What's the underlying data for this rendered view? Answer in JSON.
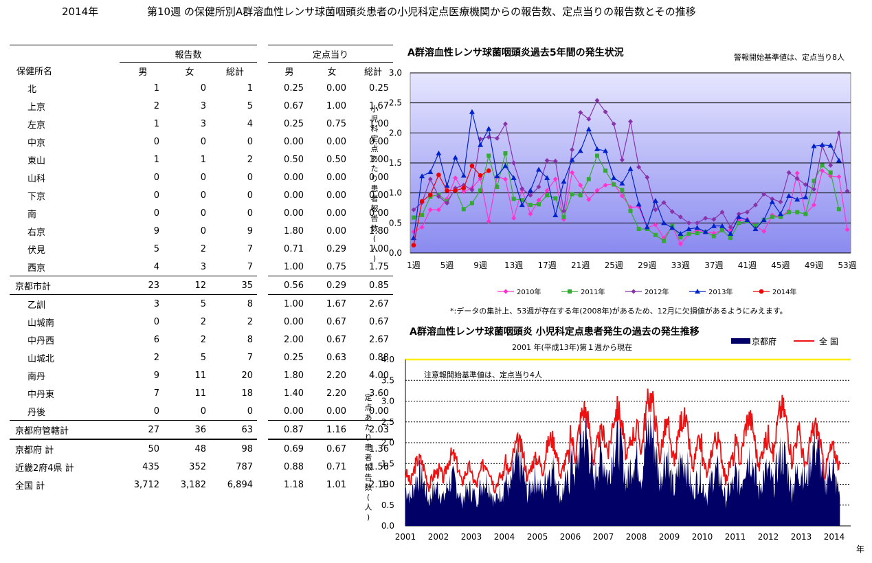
{
  "header": {
    "year": "2014年",
    "title": "第10週 の保健所別A群溶血性レンサ球菌咽頭炎患者の小児科定点医療機関からの報告数、定点当りの報告数とその推移"
  },
  "table": {
    "group_reports": "報告数",
    "group_per_site": "定点当り",
    "col_name": "保健所名",
    "cols": [
      "男",
      "女",
      "総計",
      "男",
      "女",
      "総計"
    ],
    "rows": [
      {
        "name": "北",
        "indent": true,
        "v": [
          "1",
          "0",
          "1",
          "0.25",
          "0.00",
          "0.25"
        ],
        "border": ""
      },
      {
        "name": "上京",
        "indent": true,
        "v": [
          "2",
          "3",
          "5",
          "0.67",
          "1.00",
          "1.67"
        ],
        "border": ""
      },
      {
        "name": "左京",
        "indent": true,
        "v": [
          "1",
          "3",
          "4",
          "0.25",
          "0.75",
          "1.00"
        ],
        "border": ""
      },
      {
        "name": "中京",
        "indent": true,
        "v": [
          "0",
          "0",
          "0",
          "0.00",
          "0.00",
          "0.00"
        ],
        "border": ""
      },
      {
        "name": "東山",
        "indent": true,
        "v": [
          "1",
          "1",
          "2",
          "0.50",
          "0.50",
          "1.00"
        ],
        "border": ""
      },
      {
        "name": "山科",
        "indent": true,
        "v": [
          "0",
          "0",
          "0",
          "0.00",
          "0.00",
          "0.00"
        ],
        "border": ""
      },
      {
        "name": "下京",
        "indent": true,
        "v": [
          "0",
          "0",
          "0",
          "0.00",
          "0.00",
          "0.00"
        ],
        "border": ""
      },
      {
        "name": "南",
        "indent": true,
        "v": [
          "0",
          "0",
          "0",
          "0.00",
          "0.00",
          "0.00"
        ],
        "border": ""
      },
      {
        "name": "右京",
        "indent": true,
        "v": [
          "9",
          "0",
          "9",
          "1.80",
          "0.00",
          "1.80"
        ],
        "border": ""
      },
      {
        "name": "伏見",
        "indent": true,
        "v": [
          "5",
          "2",
          "7",
          "0.71",
          "0.29",
          "1.00"
        ],
        "border": ""
      },
      {
        "name": "西京",
        "indent": true,
        "v": [
          "4",
          "3",
          "7",
          "1.00",
          "0.75",
          "1.75"
        ],
        "border": ""
      },
      {
        "name": "京都市計",
        "indent": false,
        "v": [
          "23",
          "12",
          "35",
          "0.56",
          "0.29",
          "0.85"
        ],
        "border": "bt"
      },
      {
        "name": "乙訓",
        "indent": true,
        "v": [
          "3",
          "5",
          "8",
          "1.00",
          "1.67",
          "2.67"
        ],
        "border": "bt"
      },
      {
        "name": "山城南",
        "indent": true,
        "v": [
          "0",
          "2",
          "2",
          "0.00",
          "0.67",
          "0.67"
        ],
        "border": ""
      },
      {
        "name": "中丹西",
        "indent": true,
        "v": [
          "6",
          "2",
          "8",
          "2.00",
          "0.67",
          "2.67"
        ],
        "border": ""
      },
      {
        "name": "山城北",
        "indent": true,
        "v": [
          "2",
          "5",
          "7",
          "0.25",
          "0.63",
          "0.88"
        ],
        "border": ""
      },
      {
        "name": "南丹",
        "indent": true,
        "v": [
          "9",
          "11",
          "20",
          "1.80",
          "2.20",
          "4.00"
        ],
        "border": ""
      },
      {
        "name": "中丹東",
        "indent": true,
        "v": [
          "7",
          "11",
          "18",
          "1.40",
          "2.20",
          "3.60"
        ],
        "border": ""
      },
      {
        "name": "丹後",
        "indent": true,
        "v": [
          "0",
          "0",
          "0",
          "0.00",
          "0.00",
          "0.00"
        ],
        "border": ""
      },
      {
        "name": "京都府管轄計",
        "indent": false,
        "v": [
          "27",
          "36",
          "63",
          "0.87",
          "1.16",
          "2.03"
        ],
        "border": "bt"
      },
      {
        "name": "京都府 計",
        "indent": false,
        "v": [
          "50",
          "48",
          "98",
          "0.69",
          "0.67",
          "1.36"
        ],
        "border": "bt2"
      },
      {
        "name": "近畿2府4県 計",
        "indent": false,
        "v": [
          "435",
          "352",
          "787",
          "0.88",
          "0.71",
          "1.58"
        ],
        "border": ""
      },
      {
        "name": "全国 計",
        "indent": false,
        "v": [
          "3,712",
          "3,182",
          "6,894",
          "1.18",
          "1.01",
          "2.19"
        ],
        "border": ""
      }
    ]
  },
  "chart1_note": "警報開始基準値は、定点当り8人",
  "chart1_footnote": "*:データの集計上、53週が存在する年(2008年)があるため、12月に欠損値があるようにみえます。",
  "chart2_note": "注意報開始基準値は、定点当り4人",
  "chart2_subtitle": "2001 年(平成13年)第１週から現在",
  "chart2_xunit": "年",
  "chart_data": [
    {
      "type": "line",
      "title": "A群溶血性レンサ球菌咽頭炎過去5年間の発生状況",
      "ylabel": "小児科定点あたり患者報告数(人)",
      "ylim": [
        0,
        30
      ],
      "yticks": [
        "0.0",
        "0.5",
        "1.0",
        "1.5",
        "2.0",
        "2.5",
        "3.0"
      ],
      "xticks": [
        "1週",
        "5週",
        "9週",
        "13週",
        "17週",
        "21週",
        "25週",
        "29週",
        "33週",
        "37週",
        "41週",
        "45週",
        "49週",
        "53週"
      ],
      "series": [
        {
          "name": "2010年",
          "color": "#ff33cc",
          "marker": "diamond",
          "values": [
            3.5,
            4.3,
            7.2,
            7.2,
            9.0,
            12.5,
            10.2,
            10.8,
            12.4,
            5.3,
            12.7,
            12.3,
            5.8,
            10.5,
            6.5,
            8.8,
            10.4,
            12.3,
            5.6,
            13.4,
            11.3,
            8.9,
            10.4,
            11.3,
            11.5,
            9.5,
            7.6,
            7.7,
            4.2,
            4.7,
            2.5,
            4.4,
            1.5,
            3.1,
            3.8,
            3.5,
            3.3,
            3.8,
            3.8,
            5.4,
            5.6,
            4.5,
            3.6,
            6.3,
            6.0,
            7.0,
            13.3,
            6.5,
            8.0,
            13.7,
            12.8,
            12.7,
            3.9
          ]
        },
        {
          "name": "2011年",
          "color": "#33aa33",
          "marker": "square",
          "values": [
            5.9,
            6.3,
            9.4,
            9.7,
            8.6,
            10.6,
            7.3,
            8.3,
            10.4,
            16.2,
            11.0,
            16.6,
            9.0,
            8.8,
            8.0,
            8.1,
            9.6,
            9.1,
            6.0,
            9.8,
            9.6,
            12.3,
            16.2,
            13.7,
            11.4,
            10.5,
            7.0,
            4.0,
            4.0,
            3.0,
            2.0,
            4.5,
            2.6,
            3.2,
            3.3,
            3.5,
            2.8,
            3.8,
            2.5,
            5.0,
            5.3,
            4.5,
            5.5,
            6.0,
            6.0,
            6.8,
            6.8,
            6.5,
            12.0,
            14.6,
            13.4,
            7.3
          ]
        },
        {
          "name": "2012年",
          "color": "#8833aa",
          "marker": "diamond",
          "values": [
            7.2,
            8.4,
            12.3,
            9.4,
            8.3,
            10.8,
            11.3,
            10.5,
            19.0,
            19.3,
            19.1,
            21.5,
            15.0,
            10.7,
            9.6,
            11.0,
            15.4,
            15.3,
            7.0,
            17.2,
            23.4,
            22.3,
            25.4,
            23.5,
            21.5,
            15.5,
            21.9,
            14.3,
            12.6,
            7.2,
            8.4,
            6.9,
            6.0,
            5.0,
            5.0,
            5.8,
            5.6,
            6.8,
            4.3,
            6.5,
            6.8,
            8.0,
            9.8,
            9.0,
            8.5,
            13.4,
            12.4,
            11.4,
            10.6,
            17.8,
            14.6,
            20.0,
            10.3
          ]
        },
        {
          "name": "2013年",
          "color": "#0022cc",
          "marker": "triangle",
          "values": [
            2.5,
            12.8,
            13.5,
            16.6,
            11.2,
            15.9,
            12.9,
            23.5,
            18.0,
            20.7,
            12.8,
            14.5,
            12.5,
            8.0,
            10.4,
            13.9,
            12.5,
            6.3,
            11.9,
            15.5,
            17.0,
            20.6,
            17.3,
            17.0,
            12.5,
            11.6,
            14.0,
            8.1,
            4.3,
            8.7,
            5.0,
            4.2,
            3.2,
            4.0,
            4.2,
            3.5,
            4.5,
            4.5,
            3.2,
            6.0,
            5.5,
            4.0,
            5.5,
            8.5,
            6.5,
            9.5,
            8.9,
            9.3,
            17.8,
            18.0,
            17.9,
            15.4
          ]
        },
        {
          "name": "2014年",
          "color": "#ee0000",
          "marker": "circle",
          "values": [
            1.3,
            8.6,
            9.7,
            13.0,
            10.4,
            10.4,
            10.8,
            14.5,
            12.9,
            13.7
          ]
        }
      ]
    },
    {
      "type": "area",
      "title": "A群溶血性レンサ球菌咽頭炎 小児科定点患者発生の過去の発生推移",
      "ylabel": "定点あたり患者報告数(人)",
      "ylim": [
        0,
        4.0
      ],
      "yticks": [
        "0.0",
        "0.5",
        "1.0",
        "1.5",
        "2.0",
        "2.5",
        "3.0",
        "3.5",
        "4.0"
      ],
      "xticks": [
        "2001",
        "2002",
        "2003",
        "2004",
        "2005",
        "2006",
        "2007",
        "2008",
        "2009",
        "2010",
        "2011",
        "2012",
        "2013",
        "2014"
      ],
      "series": [
        {
          "name": "京都府",
          "color": "#000066",
          "peaks": [
            1.2,
            1.1,
            1.1,
            1.5,
            1.4,
            2.2,
            2.1,
            2.3,
            1.6,
            1.3,
            1.7,
            1.7,
            1.9,
            1.4
          ],
          "troughs": [
            0.2,
            0.25,
            0.2,
            0.25,
            0.2,
            0.3,
            0.3,
            0.25,
            0.2,
            0.2,
            0.25,
            0.3,
            0.25,
            0.3
          ]
        },
        {
          "name": "全 国",
          "color": "#ee1111",
          "peaks": [
            1.6,
            1.7,
            1.5,
            2.0,
            2.1,
            2.8,
            2.8,
            3.1,
            2.6,
            2.1,
            2.6,
            2.85,
            2.4,
            2.3
          ],
          "troughs": [
            0.5,
            0.6,
            0.5,
            0.6,
            0.6,
            0.7,
            0.8,
            0.7,
            0.5,
            0.4,
            0.6,
            0.7,
            0.5,
            0.6
          ]
        }
      ],
      "threshold": 4.0,
      "threshold_color": "#ffee00"
    }
  ]
}
